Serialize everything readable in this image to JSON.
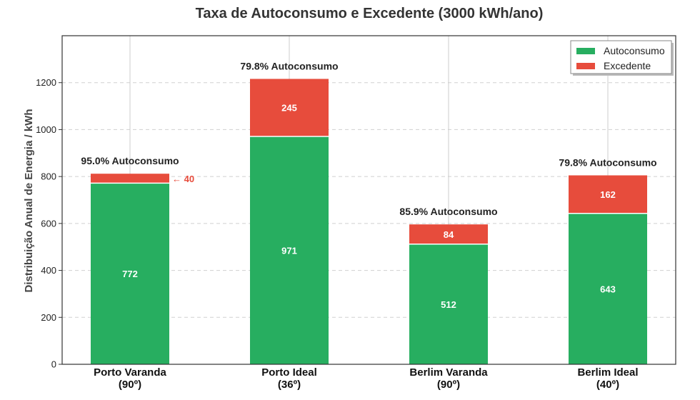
{
  "chart_data": {
    "type": "bar",
    "stacked": true,
    "title": "Taxa de Autoconsumo e Excedente (3000 kWh/ano)",
    "xlabel": "",
    "ylabel": "Distribuição Anual de Energia / kWh",
    "ylim": [
      0,
      1400
    ],
    "yticks": [
      0,
      200,
      400,
      600,
      800,
      1000,
      1200
    ],
    "grid": true,
    "legend_position": "top-right",
    "categories": [
      [
        "Porto Varanda",
        "(90º)"
      ],
      [
        "Porto Ideal",
        "(36º)"
      ],
      [
        "Berlim Varanda",
        "(90º)"
      ],
      [
        "Berlim Ideal",
        "(40º)"
      ]
    ],
    "series": [
      {
        "name": "Autoconsumo",
        "color": "#27ae60",
        "values": [
          772,
          971,
          512,
          643
        ]
      },
      {
        "name": "Excedente",
        "color": "#e74c3c",
        "values": [
          40,
          245,
          84,
          162
        ]
      }
    ],
    "value_labels": {
      "Autoconsumo": [
        "772",
        "971",
        "512",
        "643"
      ],
      "Excedente": [
        "",
        "245",
        "84",
        "162"
      ]
    },
    "bar_annotations": [
      "95.0% Autoconsumo",
      "79.8% Autoconsumo",
      "85.9% Autoconsumo",
      "79.8% Autoconsumo"
    ],
    "arrow_annotation": {
      "category_index": 0,
      "text": "← 40"
    }
  }
}
